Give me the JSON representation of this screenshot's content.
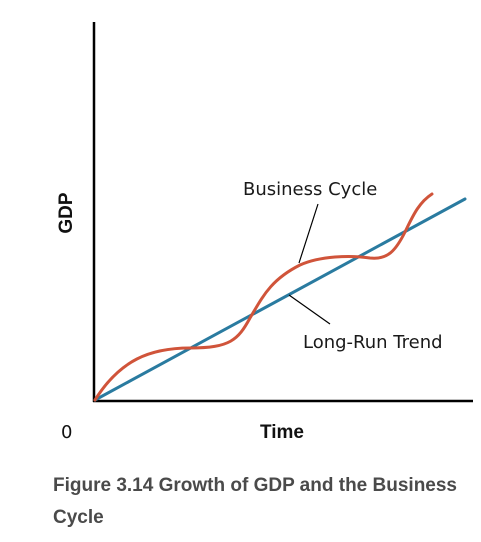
{
  "diagram": {
    "y_axis_label": "GDP",
    "x_axis_label": "Time",
    "origin_label": "0",
    "curves": [
      {
        "name": "Business Cycle",
        "color": "#d0543a"
      },
      {
        "name": "Long-Run Trend",
        "color": "#2a7ba0"
      }
    ]
  },
  "caption": "Figure 3.14 Growth of GDP and the Business Cycle"
}
